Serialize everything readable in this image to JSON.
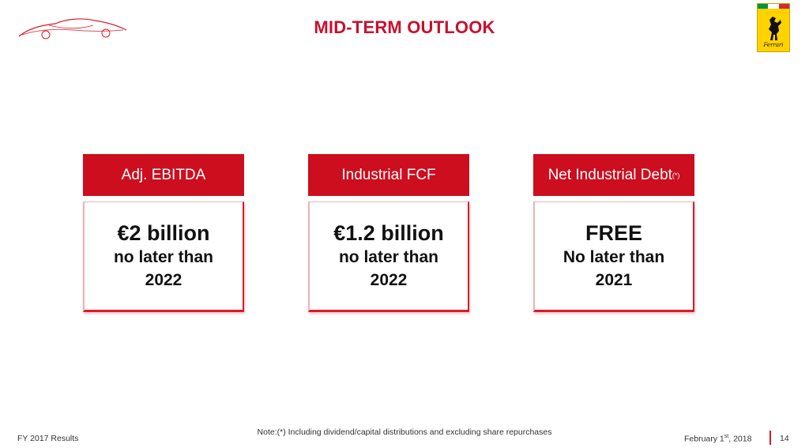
{
  "header": {
    "title": "MID-TERM OUTLOOK",
    "logo_icon": "car-silhouette-icon",
    "badge": {
      "icon": "prancing-horse-icon",
      "brand_text": "Ferrari"
    }
  },
  "cards": [
    {
      "title": "Adj. EBITDA",
      "value": "€2 billion",
      "line1": "no later than",
      "line2": "2022"
    },
    {
      "title": "Industrial FCF",
      "value": "€1.2 billion",
      "line1": "no later than",
      "line2": "2022"
    },
    {
      "title": "Net Industrial Debt",
      "title_sup": "(*)",
      "value": "FREE",
      "line1": "No later than",
      "line2": "2021"
    }
  ],
  "footer": {
    "note": "Note:(*) Including dividend/capital distributions and excluding share repurchases",
    "left": "FY 2017 Results",
    "date": "February 1",
    "date_sup": "st",
    "date_year": ", 2018",
    "page": "14"
  },
  "colors": {
    "accent": "#c8102e",
    "header_fill": "#cc0e1e",
    "badge_yellow": "#ffd200"
  }
}
